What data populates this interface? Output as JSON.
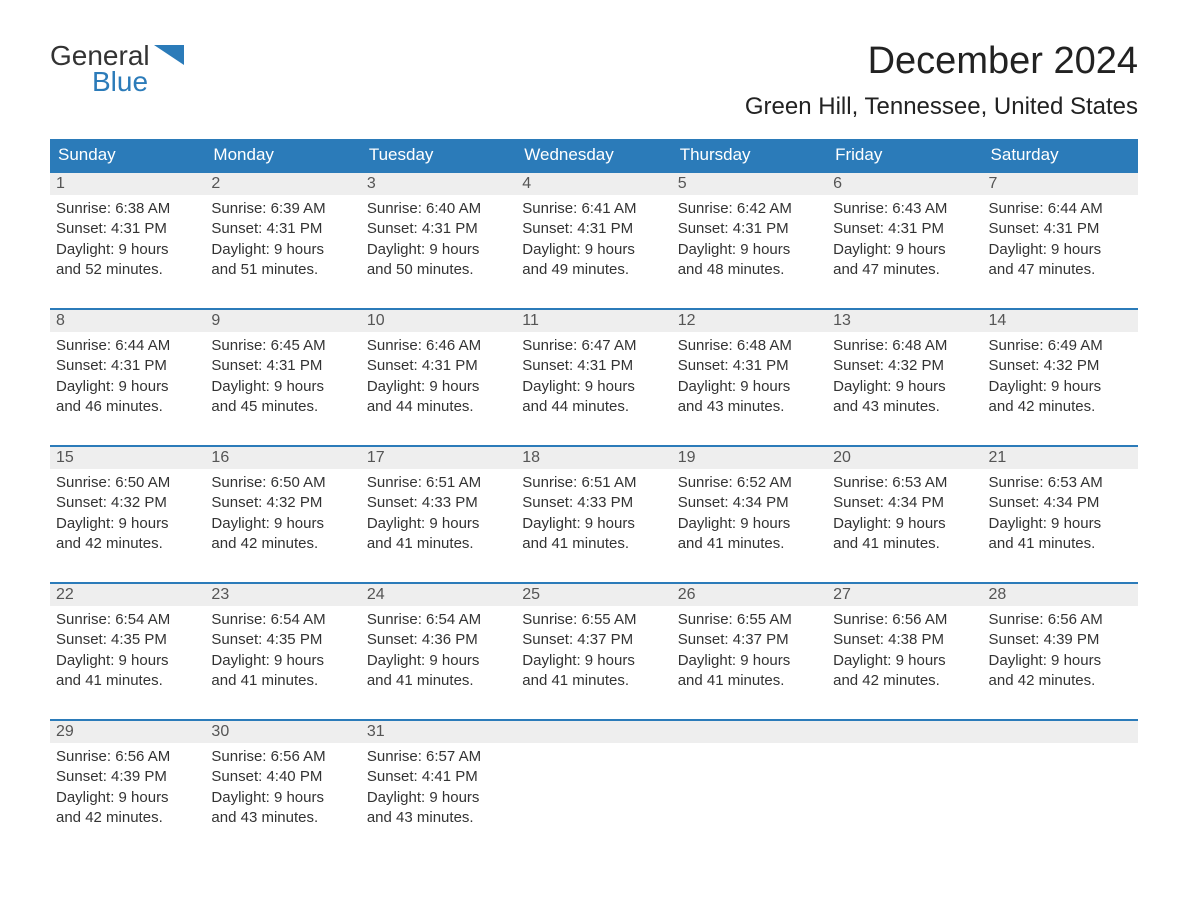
{
  "logo": {
    "top": "General",
    "bottom": "Blue",
    "shape_color": "#2b7bb9",
    "top_color": "#333333",
    "bottom_color": "#2b7bb9"
  },
  "header": {
    "month_title": "December 2024",
    "location": "Green Hill, Tennessee, United States"
  },
  "style": {
    "header_bg": "#2b7bb9",
    "header_fg": "#ffffff",
    "daynum_bg": "#eeeeee",
    "daynum_fg": "#555555",
    "week_border": "#2b7bb9",
    "text_color": "#333333",
    "page_bg": "#ffffff",
    "dow_fontsize": 17,
    "daynum_fontsize": 16,
    "body_fontsize": 15,
    "title_fontsize": 38,
    "location_fontsize": 24
  },
  "columns": [
    "Sunday",
    "Monday",
    "Tuesday",
    "Wednesday",
    "Thursday",
    "Friday",
    "Saturday"
  ],
  "weeks": [
    [
      {
        "n": "1",
        "l1": "Sunrise: 6:38 AM",
        "l2": "Sunset: 4:31 PM",
        "l3": "Daylight: 9 hours",
        "l4": "and 52 minutes."
      },
      {
        "n": "2",
        "l1": "Sunrise: 6:39 AM",
        "l2": "Sunset: 4:31 PM",
        "l3": "Daylight: 9 hours",
        "l4": "and 51 minutes."
      },
      {
        "n": "3",
        "l1": "Sunrise: 6:40 AM",
        "l2": "Sunset: 4:31 PM",
        "l3": "Daylight: 9 hours",
        "l4": "and 50 minutes."
      },
      {
        "n": "4",
        "l1": "Sunrise: 6:41 AM",
        "l2": "Sunset: 4:31 PM",
        "l3": "Daylight: 9 hours",
        "l4": "and 49 minutes."
      },
      {
        "n": "5",
        "l1": "Sunrise: 6:42 AM",
        "l2": "Sunset: 4:31 PM",
        "l3": "Daylight: 9 hours",
        "l4": "and 48 minutes."
      },
      {
        "n": "6",
        "l1": "Sunrise: 6:43 AM",
        "l2": "Sunset: 4:31 PM",
        "l3": "Daylight: 9 hours",
        "l4": "and 47 minutes."
      },
      {
        "n": "7",
        "l1": "Sunrise: 6:44 AM",
        "l2": "Sunset: 4:31 PM",
        "l3": "Daylight: 9 hours",
        "l4": "and 47 minutes."
      }
    ],
    [
      {
        "n": "8",
        "l1": "Sunrise: 6:44 AM",
        "l2": "Sunset: 4:31 PM",
        "l3": "Daylight: 9 hours",
        "l4": "and 46 minutes."
      },
      {
        "n": "9",
        "l1": "Sunrise: 6:45 AM",
        "l2": "Sunset: 4:31 PM",
        "l3": "Daylight: 9 hours",
        "l4": "and 45 minutes."
      },
      {
        "n": "10",
        "l1": "Sunrise: 6:46 AM",
        "l2": "Sunset: 4:31 PM",
        "l3": "Daylight: 9 hours",
        "l4": "and 44 minutes."
      },
      {
        "n": "11",
        "l1": "Sunrise: 6:47 AM",
        "l2": "Sunset: 4:31 PM",
        "l3": "Daylight: 9 hours",
        "l4": "and 44 minutes."
      },
      {
        "n": "12",
        "l1": "Sunrise: 6:48 AM",
        "l2": "Sunset: 4:31 PM",
        "l3": "Daylight: 9 hours",
        "l4": "and 43 minutes."
      },
      {
        "n": "13",
        "l1": "Sunrise: 6:48 AM",
        "l2": "Sunset: 4:32 PM",
        "l3": "Daylight: 9 hours",
        "l4": "and 43 minutes."
      },
      {
        "n": "14",
        "l1": "Sunrise: 6:49 AM",
        "l2": "Sunset: 4:32 PM",
        "l3": "Daylight: 9 hours",
        "l4": "and 42 minutes."
      }
    ],
    [
      {
        "n": "15",
        "l1": "Sunrise: 6:50 AM",
        "l2": "Sunset: 4:32 PM",
        "l3": "Daylight: 9 hours",
        "l4": "and 42 minutes."
      },
      {
        "n": "16",
        "l1": "Sunrise: 6:50 AM",
        "l2": "Sunset: 4:32 PM",
        "l3": "Daylight: 9 hours",
        "l4": "and 42 minutes."
      },
      {
        "n": "17",
        "l1": "Sunrise: 6:51 AM",
        "l2": "Sunset: 4:33 PM",
        "l3": "Daylight: 9 hours",
        "l4": "and 41 minutes."
      },
      {
        "n": "18",
        "l1": "Sunrise: 6:51 AM",
        "l2": "Sunset: 4:33 PM",
        "l3": "Daylight: 9 hours",
        "l4": "and 41 minutes."
      },
      {
        "n": "19",
        "l1": "Sunrise: 6:52 AM",
        "l2": "Sunset: 4:34 PM",
        "l3": "Daylight: 9 hours",
        "l4": "and 41 minutes."
      },
      {
        "n": "20",
        "l1": "Sunrise: 6:53 AM",
        "l2": "Sunset: 4:34 PM",
        "l3": "Daylight: 9 hours",
        "l4": "and 41 minutes."
      },
      {
        "n": "21",
        "l1": "Sunrise: 6:53 AM",
        "l2": "Sunset: 4:34 PM",
        "l3": "Daylight: 9 hours",
        "l4": "and 41 minutes."
      }
    ],
    [
      {
        "n": "22",
        "l1": "Sunrise: 6:54 AM",
        "l2": "Sunset: 4:35 PM",
        "l3": "Daylight: 9 hours",
        "l4": "and 41 minutes."
      },
      {
        "n": "23",
        "l1": "Sunrise: 6:54 AM",
        "l2": "Sunset: 4:35 PM",
        "l3": "Daylight: 9 hours",
        "l4": "and 41 minutes."
      },
      {
        "n": "24",
        "l1": "Sunrise: 6:54 AM",
        "l2": "Sunset: 4:36 PM",
        "l3": "Daylight: 9 hours",
        "l4": "and 41 minutes."
      },
      {
        "n": "25",
        "l1": "Sunrise: 6:55 AM",
        "l2": "Sunset: 4:37 PM",
        "l3": "Daylight: 9 hours",
        "l4": "and 41 minutes."
      },
      {
        "n": "26",
        "l1": "Sunrise: 6:55 AM",
        "l2": "Sunset: 4:37 PM",
        "l3": "Daylight: 9 hours",
        "l4": "and 41 minutes."
      },
      {
        "n": "27",
        "l1": "Sunrise: 6:56 AM",
        "l2": "Sunset: 4:38 PM",
        "l3": "Daylight: 9 hours",
        "l4": "and 42 minutes."
      },
      {
        "n": "28",
        "l1": "Sunrise: 6:56 AM",
        "l2": "Sunset: 4:39 PM",
        "l3": "Daylight: 9 hours",
        "l4": "and 42 minutes."
      }
    ],
    [
      {
        "n": "29",
        "l1": "Sunrise: 6:56 AM",
        "l2": "Sunset: 4:39 PM",
        "l3": "Daylight: 9 hours",
        "l4": "and 42 minutes."
      },
      {
        "n": "30",
        "l1": "Sunrise: 6:56 AM",
        "l2": "Sunset: 4:40 PM",
        "l3": "Daylight: 9 hours",
        "l4": "and 43 minutes."
      },
      {
        "n": "31",
        "l1": "Sunrise: 6:57 AM",
        "l2": "Sunset: 4:41 PM",
        "l3": "Daylight: 9 hours",
        "l4": "and 43 minutes."
      },
      {
        "n": "",
        "l1": "",
        "l2": "",
        "l3": "",
        "l4": ""
      },
      {
        "n": "",
        "l1": "",
        "l2": "",
        "l3": "",
        "l4": ""
      },
      {
        "n": "",
        "l1": "",
        "l2": "",
        "l3": "",
        "l4": ""
      },
      {
        "n": "",
        "l1": "",
        "l2": "",
        "l3": "",
        "l4": ""
      }
    ]
  ]
}
